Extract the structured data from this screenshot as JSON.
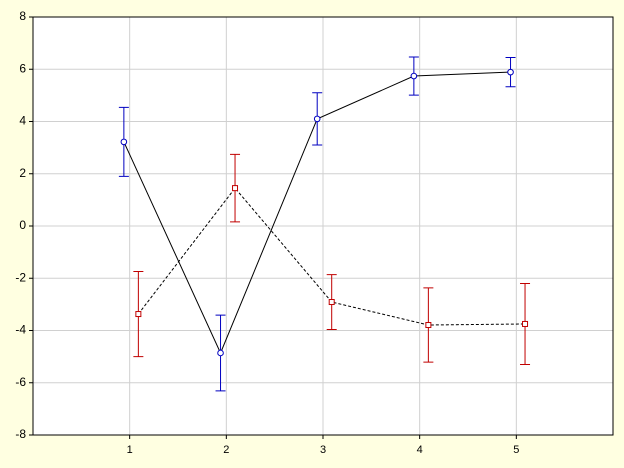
{
  "chart_data": {
    "type": "errorbar-line",
    "xlim": [
      0,
      6
    ],
    "xticks": [
      1,
      2,
      3,
      4,
      5
    ],
    "ylim": [
      -8,
      8
    ],
    "yticks": [
      -8,
      -6,
      -4,
      -2,
      0,
      2,
      4,
      6,
      8
    ],
    "grid": true,
    "line_color": "#000000",
    "series": [
      {
        "color": "#0000c0",
        "line_style": "solid",
        "marker": "circle",
        "x": [
          0.94,
          1.94,
          2.94,
          3.94,
          4.94
        ],
        "values": [
          3.22,
          -4.86,
          4.1,
          5.74,
          5.89
        ],
        "errors": [
          1.32,
          1.45,
          1.0,
          0.73,
          0.56
        ]
      },
      {
        "color": "#c00000",
        "line_style": "dashed",
        "marker": "square",
        "x": [
          1.09,
          2.09,
          3.09,
          4.09,
          5.09
        ],
        "values": [
          -3.37,
          1.45,
          -2.91,
          -3.79,
          -3.75
        ],
        "errors": [
          1.63,
          1.29,
          1.05,
          1.42,
          1.55
        ]
      }
    ]
  }
}
